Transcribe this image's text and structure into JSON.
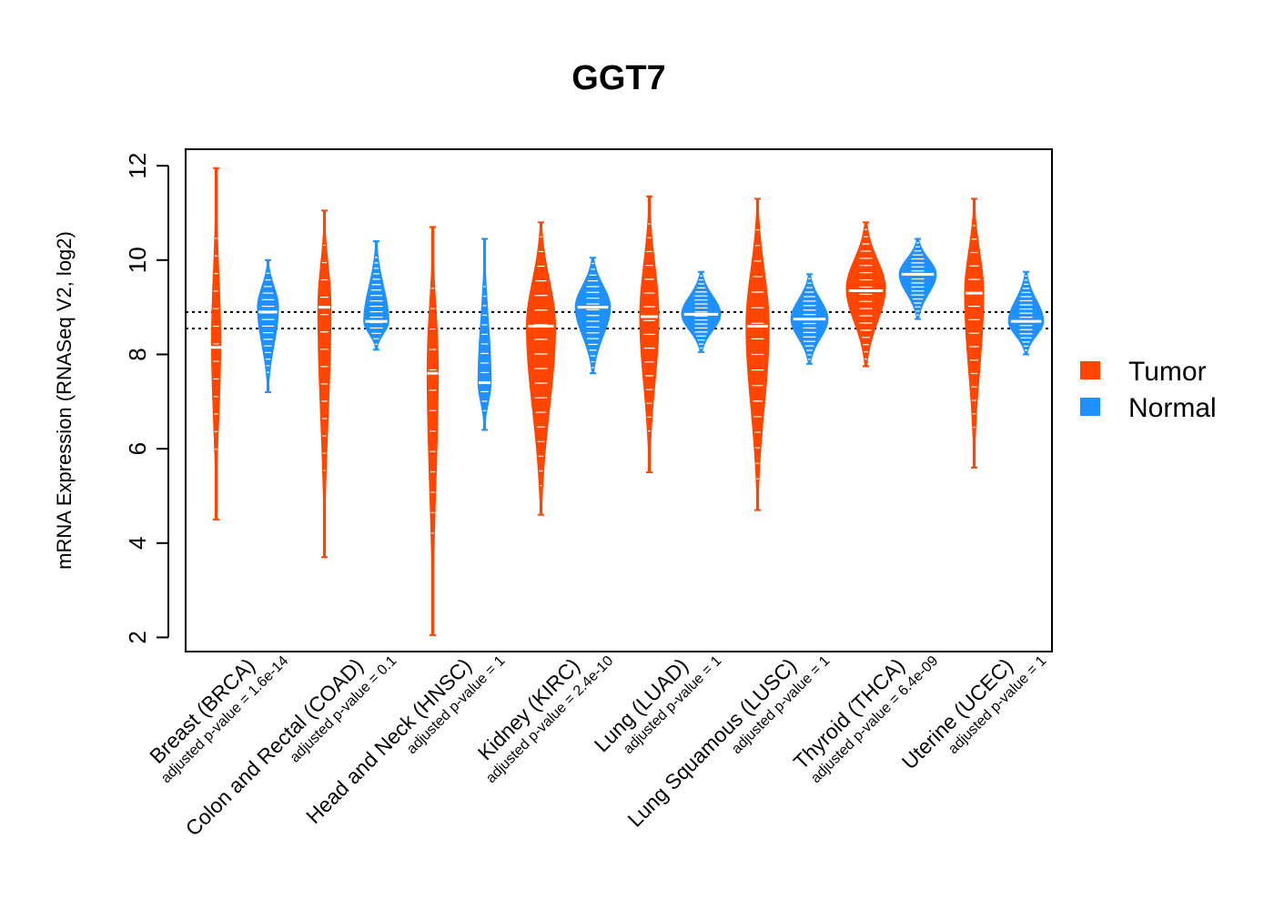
{
  "chart_data": {
    "type": "violin",
    "title": "GGT7",
    "ylabel": "mRNA Expression (RNASeq V2, log2)",
    "xlabel": "",
    "ylim": [
      1.7,
      12.35
    ],
    "yticks": [
      2,
      4,
      6,
      8,
      10,
      12
    ],
    "reference_lines": [
      8.55,
      8.9
    ],
    "legend": {
      "position": "right",
      "entries": [
        {
          "name": "Tumor",
          "color": "#FF4500"
        },
        {
          "name": "Normal",
          "color": "#1E90FF"
        }
      ]
    },
    "categories": [
      {
        "label": "Breast (BRCA)",
        "pvalue": "adjusted p-value = 1.6e-14",
        "tumor": {
          "min": 4.5,
          "max": 11.95,
          "median": 8.15,
          "peak": 8.2,
          "width": 0.25
        },
        "normal": {
          "min": 7.2,
          "max": 10.0,
          "median": 8.9,
          "peak": 9.0,
          "width": 0.55
        }
      },
      {
        "label": "Colon and Rectal (COAD)",
        "pvalue": "adjusted p-value = 0.1",
        "tumor": {
          "min": 3.7,
          "max": 11.05,
          "median": 9.0,
          "peak": 9.0,
          "width": 0.35
        },
        "normal": {
          "min": 8.1,
          "max": 10.4,
          "median": 8.7,
          "peak": 8.7,
          "width": 0.65
        }
      },
      {
        "label": "Head and Neck (HNSC)",
        "pvalue": "adjusted p-value = 1",
        "tumor": {
          "min": 2.05,
          "max": 10.7,
          "median": 7.6,
          "peak": 7.7,
          "width": 0.3
        },
        "normal": {
          "min": 6.4,
          "max": 10.45,
          "median": 7.4,
          "peak": 7.4,
          "width": 0.35
        }
      },
      {
        "label": "Kidney (KIRC)",
        "pvalue": "adjusted p-value = 2.4e-10",
        "tumor": {
          "min": 4.6,
          "max": 10.8,
          "median": 8.6,
          "peak": 8.6,
          "width": 0.75
        },
        "normal": {
          "min": 7.6,
          "max": 10.05,
          "median": 9.0,
          "peak": 9.0,
          "width": 0.9
        }
      },
      {
        "label": "Lung (LUAD)",
        "pvalue": "adjusted p-value = 1",
        "tumor": {
          "min": 5.5,
          "max": 11.35,
          "median": 8.8,
          "peak": 8.8,
          "width": 0.5
        },
        "normal": {
          "min": 8.05,
          "max": 9.75,
          "median": 8.85,
          "peak": 8.85,
          "width": 1.0
        }
      },
      {
        "label": "Lung Squamous (LUSC)",
        "pvalue": "adjusted p-value = 1",
        "tumor": {
          "min": 4.7,
          "max": 11.3,
          "median": 8.6,
          "peak": 8.6,
          "width": 0.6
        },
        "normal": {
          "min": 7.8,
          "max": 9.7,
          "median": 8.75,
          "peak": 8.75,
          "width": 0.95
        }
      },
      {
        "label": "Thyroid (THCA)",
        "pvalue": "adjusted p-value = 6.4e-09",
        "tumor": {
          "min": 7.75,
          "max": 10.8,
          "median": 9.35,
          "peak": 9.4,
          "width": 1.0
        },
        "normal": {
          "min": 8.75,
          "max": 10.45,
          "median": 9.7,
          "peak": 9.7,
          "width": 0.95
        }
      },
      {
        "label": "Uterine (UCEC)",
        "pvalue": "adjusted p-value = 1",
        "tumor": {
          "min": 5.6,
          "max": 11.3,
          "median": 9.3,
          "peak": 9.3,
          "width": 0.5
        },
        "normal": {
          "min": 8.0,
          "max": 9.75,
          "median": 8.7,
          "peak": 8.7,
          "width": 0.9
        }
      }
    ]
  }
}
